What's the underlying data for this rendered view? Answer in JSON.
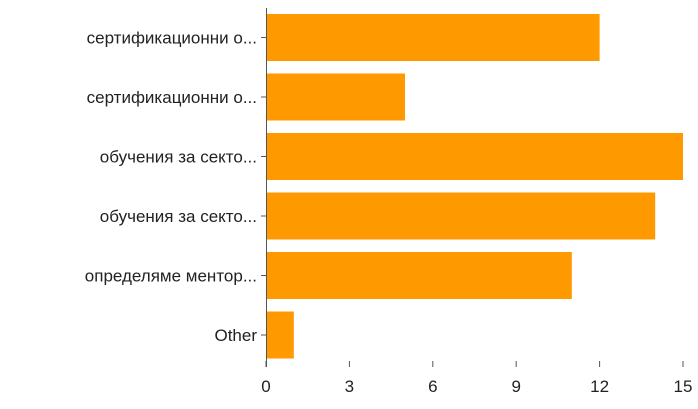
{
  "chart_data": {
    "type": "bar",
    "orientation": "horizontal",
    "categories": [
      "сертификационни о...",
      "сертификационни о...",
      "обучения за секто...",
      "обучения за секто...",
      "определяме ментор...",
      "Other"
    ],
    "values": [
      12,
      5,
      15,
      14,
      11,
      1
    ],
    "xlim": [
      0,
      15
    ],
    "xticks": [
      "0",
      "3",
      "6",
      "9",
      "12",
      "15"
    ],
    "grid": false,
    "legend": "none",
    "colors": {
      "bar": "#FF9900",
      "axis": "#555555",
      "text": "#222222"
    }
  }
}
